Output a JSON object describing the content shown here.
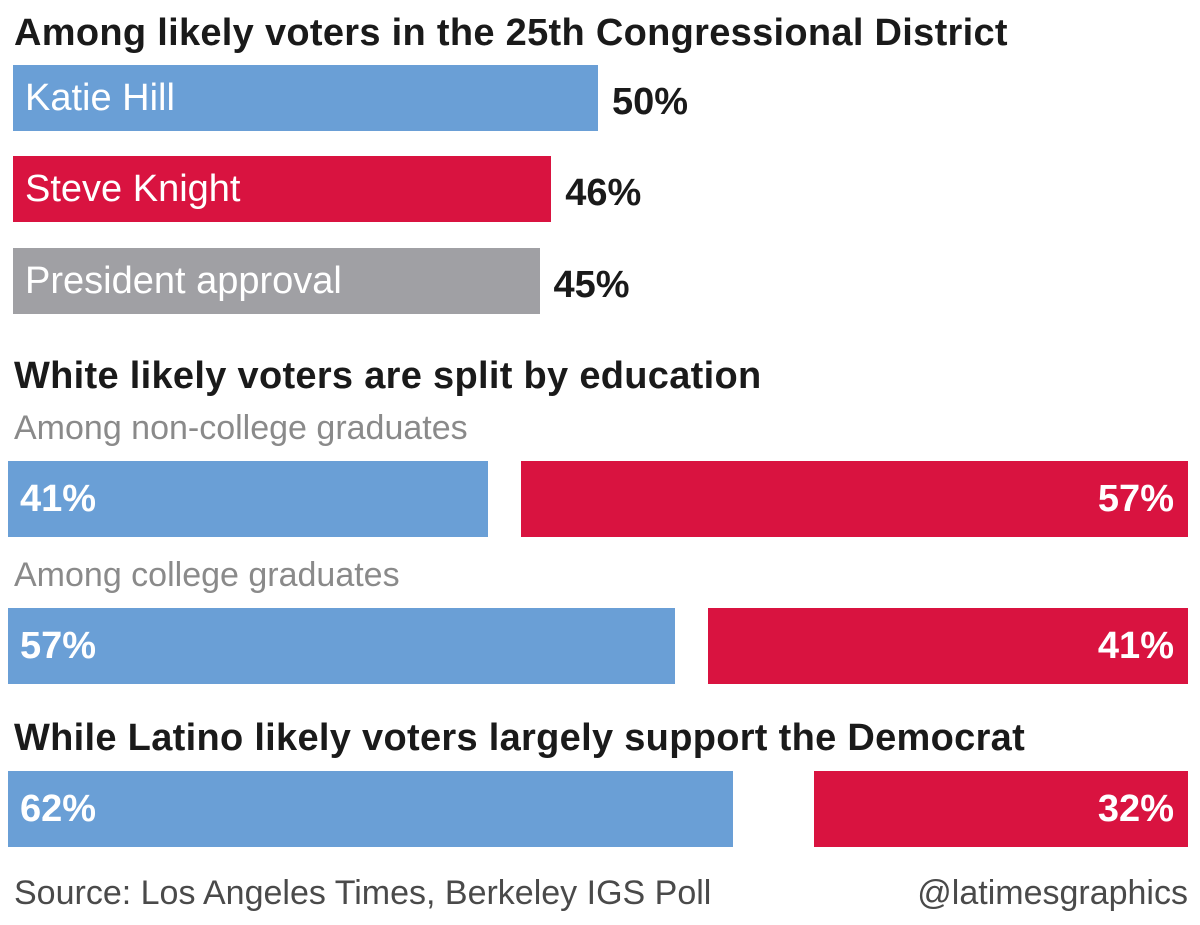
{
  "colors": {
    "dem": "#6a9fd6",
    "rep": "#d91340",
    "approval": "#a0a0a4"
  },
  "chart_data": [
    {
      "type": "bar",
      "title": "Among likely voters in the 25th Congressional District",
      "categories": [
        "Katie Hill",
        "Steve Knight",
        "President approval"
      ],
      "values": [
        50,
        46,
        45
      ],
      "value_labels": [
        "50%",
        "46%",
        "45%"
      ],
      "unit": "%"
    },
    {
      "type": "bar",
      "title": "White likely voters are split by education",
      "groups": [
        {
          "label": "Among non-college graduates",
          "dem": 41,
          "rep": 57,
          "dem_label": "41%",
          "rep_label": "57%"
        },
        {
          "label": "Among college graduates",
          "dem": 57,
          "rep": 41,
          "dem_label": "57%",
          "rep_label": "41%"
        }
      ]
    },
    {
      "type": "bar",
      "title": "While Latino likely voters largely support the Democrat",
      "groups": [
        {
          "label": "",
          "dem": 62,
          "rep": 32,
          "dem_label": "62%",
          "rep_label": "32%"
        }
      ]
    }
  ],
  "footer": {
    "source": "Source: Los Angeles Times, Berkeley IGS Poll",
    "credit": "@latimesgraphics"
  }
}
